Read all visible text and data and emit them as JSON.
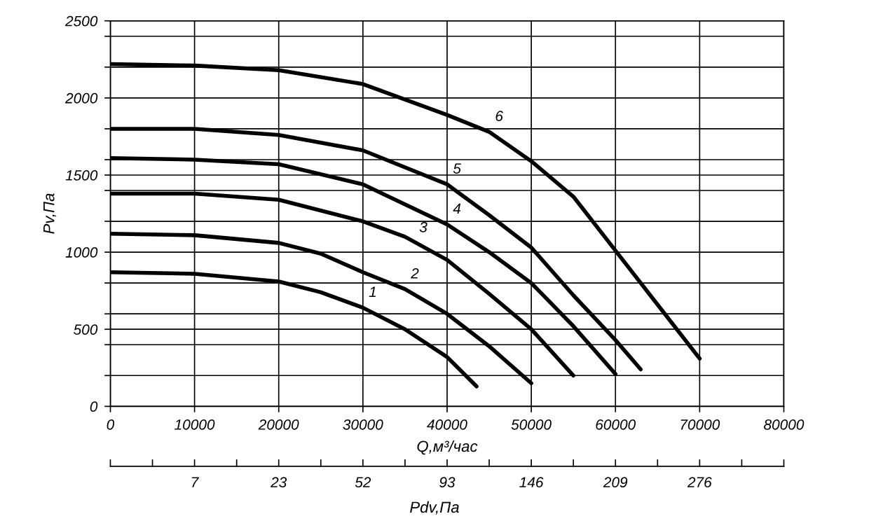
{
  "chart_data": {
    "type": "line",
    "xlabel": "Q,м³/час",
    "ylabel": "Pv,Па",
    "xlim": [
      0,
      80000
    ],
    "xticks": [
      0,
      10000,
      20000,
      30000,
      40000,
      50000,
      60000,
      70000,
      80000
    ],
    "ylim": [
      0,
      2500
    ],
    "yticks": [
      0,
      {
        "value": 200,
        "label": null
      },
      {
        "value": 400,
        "label": null
      },
      500,
      {
        "value": 600,
        "label": null
      },
      {
        "value": 800,
        "label": null
      },
      1000,
      {
        "value": 1200,
        "label": null
      },
      {
        "value": 1400,
        "label": null
      },
      1500,
      {
        "value": 1600,
        "label": null
      },
      {
        "value": 1800,
        "label": null
      },
      2000,
      {
        "value": 2200,
        "label": null
      },
      {
        "value": 2400,
        "label": null
      },
      2500
    ],
    "grid": true,
    "marker": "none",
    "line_style": "solid",
    "series": [
      {
        "color": "#000000",
        "x": [
          0,
          10000,
          20000,
          25000,
          30000,
          35000,
          40000,
          43500
        ],
        "values": [
          870,
          860,
          810,
          740,
          640,
          500,
          320,
          130
        ]
      },
      {
        "color": "#000000",
        "x": [
          0,
          10000,
          20000,
          25000,
          30000,
          35000,
          40000,
          45000,
          50000
        ],
        "values": [
          1120,
          1110,
          1060,
          990,
          870,
          760,
          600,
          390,
          150
        ]
      },
      {
        "color": "#000000",
        "x": [
          0,
          10000,
          20000,
          30000,
          35000,
          40000,
          45000,
          50000,
          55000
        ],
        "values": [
          1380,
          1380,
          1340,
          1200,
          1100,
          950,
          730,
          500,
          200
        ]
      },
      {
        "color": "#000000",
        "x": [
          0,
          10000,
          20000,
          30000,
          40000,
          45000,
          50000,
          55000,
          60000
        ],
        "values": [
          1610,
          1600,
          1570,
          1440,
          1180,
          1000,
          800,
          520,
          210
        ]
      },
      {
        "color": "#000000",
        "x": [
          0,
          10000,
          20000,
          30000,
          40000,
          45000,
          50000,
          55000,
          60000,
          63000
        ],
        "values": [
          1800,
          1800,
          1760,
          1660,
          1440,
          1240,
          1030,
          720,
          430,
          240
        ]
      },
      {
        "color": "#000000",
        "x": [
          0,
          10000,
          20000,
          30000,
          40000,
          45000,
          50000,
          55000,
          60000,
          65000,
          70000
        ],
        "values": [
          2220,
          2210,
          2180,
          2090,
          1890,
          1780,
          1590,
          1360,
          1010,
          660,
          310
        ]
      }
    ],
    "annotations": [
      {
        "text": "1",
        "x": 30000,
        "y": 640
      },
      {
        "text": "2",
        "x": 35000,
        "y": 760
      },
      {
        "text": "3",
        "x": 36000,
        "y": 1060
      },
      {
        "text": "4",
        "x": 40000,
        "y": 1180
      },
      {
        "text": "5",
        "x": 40000,
        "y": 1440
      },
      {
        "text": "6",
        "x": 45000,
        "y": 1780
      },
      "7",
      "23",
      "52",
      "93",
      "146",
      "209",
      "276",
      "Pdv,Па"
    ]
  }
}
